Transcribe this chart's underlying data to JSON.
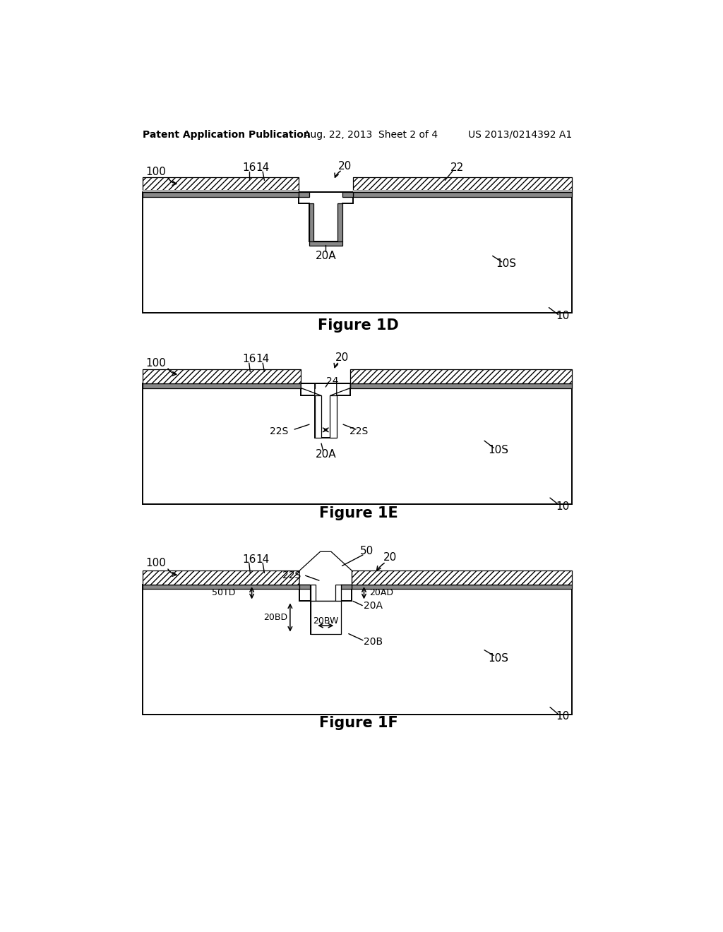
{
  "bg_color": "#ffffff",
  "header_text": "Patent Application Publication",
  "header_date": "Aug. 22, 2013  Sheet 2 of 4",
  "header_patent": "US 2013/0214392 A1",
  "fig1d_label": "Figure 1D",
  "fig1e_label": "Figure 1E",
  "fig1f_label": "Figure 1F",
  "hatch_pattern": "////",
  "lw": 1.4,
  "lw_thin": 0.9,
  "fontsize_label": 11,
  "fontsize_fig": 15
}
